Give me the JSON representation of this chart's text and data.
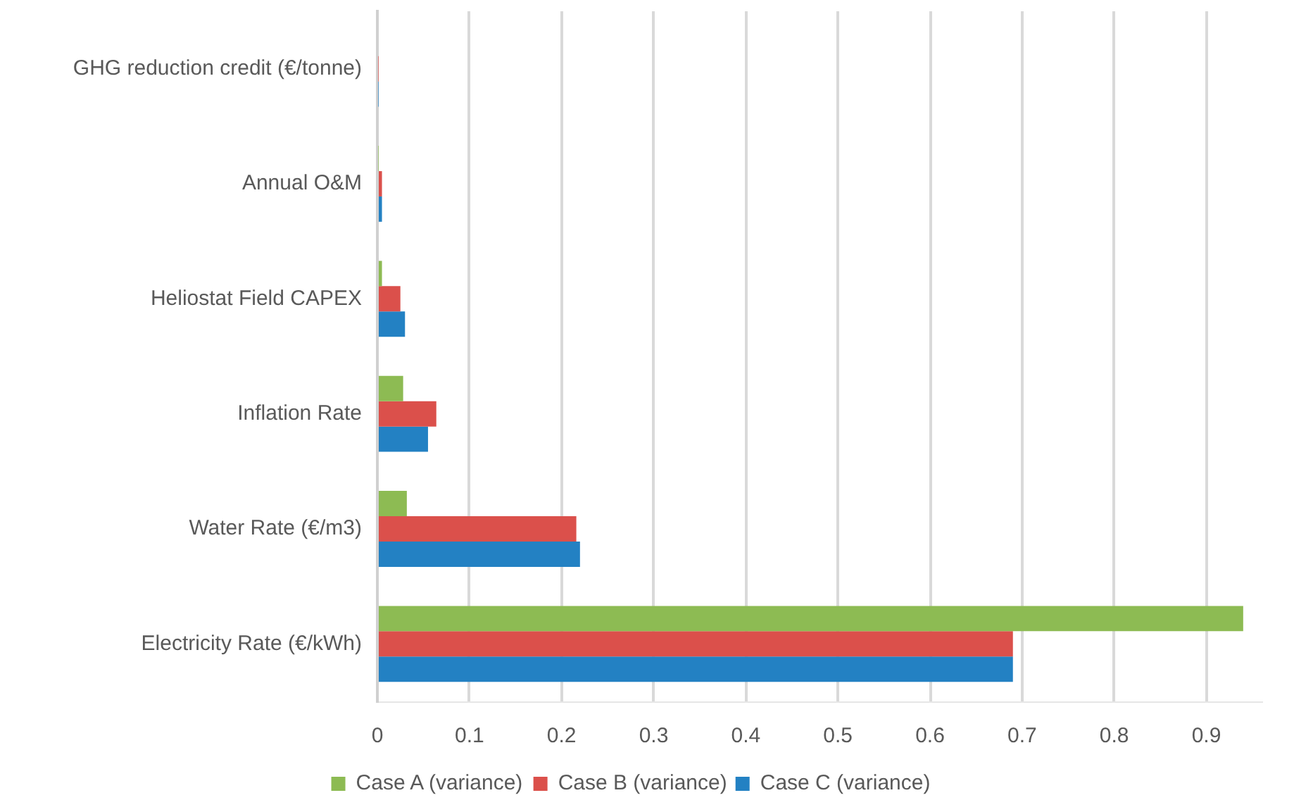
{
  "chart_data": {
    "type": "bar",
    "orientation": "horizontal",
    "categories": [
      "GHG reduction credit (€/tonne)",
      "Annual O&M",
      "Heliostat Field CAPEX",
      "Inflation Rate",
      "Water Rate (€/m3)",
      "Electricity Rate (€/kWh)"
    ],
    "series": [
      {
        "name": "Case A (variance)",
        "color": "#8dbb53",
        "values": [
          0,
          0.001,
          0.005,
          0.028,
          0.032,
          0.94
        ]
      },
      {
        "name": "Case B (variance)",
        "color": "#db504b",
        "values": [
          0.001,
          0.005,
          0.025,
          0.064,
          0.216,
          0.69
        ]
      },
      {
        "name": "Case C (variance)",
        "color": "#2381c3",
        "values": [
          0.001,
          0.005,
          0.03,
          0.055,
          0.22,
          0.69
        ]
      }
    ],
    "xlim": [
      0,
      0.96
    ],
    "xticks": [
      0,
      0.1,
      0.2,
      0.3,
      0.4,
      0.5,
      0.6,
      0.7,
      0.8,
      0.9
    ],
    "grid": "x",
    "legend": "bottom"
  }
}
